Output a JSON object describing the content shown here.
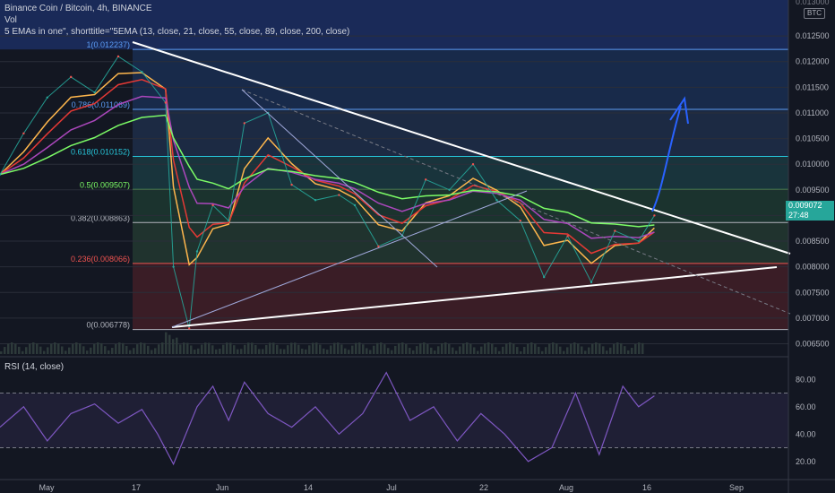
{
  "header": {
    "title": "Binance Coin / Bitcoin, 4h, BINANCE",
    "vol_label": "Vol",
    "ema_label": "5 EMAs in one\", shorttitle=\"5EMA (13, close, 21, close, 55, close, 89, close, 200, close)",
    "currency_badge": "BTC",
    "top_scale_partial": "0.013000"
  },
  "price_marker": {
    "value": "0.009072",
    "countdown": "27:48",
    "color": "#26a69a"
  },
  "rsi_panel": {
    "label": "RSI (14, close)"
  },
  "colors": {
    "background": "#131722",
    "trendline": "#ffffff",
    "arrow": "#2962ff",
    "ema_green": "#7cfc66",
    "ema_red": "#e53935",
    "rsi_line": "#7e57c2"
  },
  "chart_data": [
    {
      "type": "line",
      "title": "Binance Coin / Bitcoin, 4h, BINANCE",
      "x_ticks": [
        "May",
        "17",
        "Jun",
        "14",
        "Jul",
        "22",
        "Aug",
        "16",
        "Sep"
      ],
      "y_ticks": [
        "0.012500",
        "0.012000",
        "0.011500",
        "0.011000",
        "0.010500",
        "0.010000",
        "0.009500",
        "0.009000",
        "0.008500",
        "0.008000",
        "0.007500",
        "0.007000",
        "0.006500"
      ],
      "ylim": [
        0.0063,
        0.0132
      ],
      "fib_levels": [
        {
          "ratio": "1",
          "price": 0.012237,
          "label": "1(0.012237)",
          "color": "#5b9cf6"
        },
        {
          "ratio": "0.786",
          "price": 0.011069,
          "label": "0.786(0.011069)",
          "color": "#5b9cf6"
        },
        {
          "ratio": "0.618",
          "price": 0.010152,
          "label": "0.618(0.010152)",
          "color": "#26c6da"
        },
        {
          "ratio": "0.5",
          "price": 0.009507,
          "label": "0.5(0.009507)",
          "color": "#7cfc66"
        },
        {
          "ratio": "0.382",
          "price": 0.008863,
          "label": "0.382(0.008863)",
          "color": "#b2b5be"
        },
        {
          "ratio": "0.236",
          "price": 0.008066,
          "label": "0.236(0.008066)",
          "color": "#ef5350"
        },
        {
          "ratio": "0",
          "price": 0.006778,
          "label": "0(0.006778)",
          "color": "#b2b5be"
        }
      ],
      "series": [
        {
          "x": [
            0,
            0.03,
            0.06,
            0.09,
            0.12,
            0.15,
            0.18,
            0.21,
            0.22,
            0.24,
            0.25,
            0.27,
            0.29,
            0.31,
            0.34,
            0.37,
            0.4,
            0.43,
            0.45,
            0.48,
            0.51,
            0.54,
            0.57,
            0.6,
            0.63,
            0.66,
            0.69,
            0.72,
            0.75,
            0.78,
            0.81,
            0.83
          ],
          "values": [
            0.0098,
            0.0106,
            0.0113,
            0.0117,
            0.0114,
            0.0121,
            0.0118,
            0.0112,
            0.008,
            0.0068,
            0.0083,
            0.0092,
            0.0089,
            0.0108,
            0.011,
            0.0096,
            0.0093,
            0.0094,
            0.0092,
            0.0084,
            0.0086,
            0.0097,
            0.0095,
            0.01,
            0.0093,
            0.0089,
            0.0078,
            0.0086,
            0.0077,
            0.0087,
            0.0085,
            0.009
          ]
        }
      ],
      "annotations": [
        "projected breakout arrow toward 0.786 level"
      ]
    },
    {
      "type": "line",
      "title": "RSI (14, close)",
      "y_ticks": [
        "80.00",
        "60.00",
        "40.00",
        "20.00"
      ],
      "ylim": [
        10,
        90
      ],
      "bands": [
        30,
        70
      ],
      "series": [
        {
          "x": [
            0,
            0.03,
            0.06,
            0.09,
            0.12,
            0.15,
            0.18,
            0.2,
            0.22,
            0.25,
            0.27,
            0.29,
            0.31,
            0.34,
            0.37,
            0.4,
            0.43,
            0.46,
            0.49,
            0.52,
            0.55,
            0.58,
            0.61,
            0.64,
            0.67,
            0.7,
            0.73,
            0.76,
            0.79,
            0.81,
            0.83
          ],
          "values": [
            45,
            60,
            35,
            55,
            62,
            48,
            58,
            40,
            18,
            60,
            75,
            50,
            78,
            55,
            45,
            60,
            40,
            55,
            85,
            50,
            60,
            35,
            55,
            40,
            20,
            30,
            70,
            25,
            75,
            60,
            68
          ]
        }
      ]
    }
  ]
}
